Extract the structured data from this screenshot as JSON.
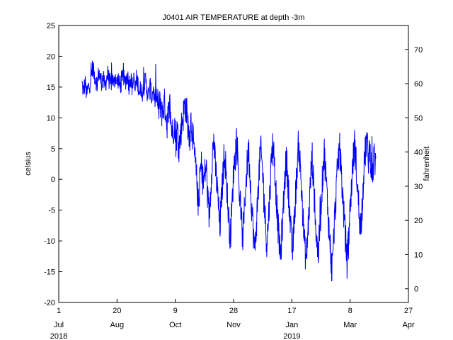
{
  "chart_data": {
    "type": "line",
    "title": "J0401 AIR TEMPERATURE at depth -3m",
    "ylabel": "celsius",
    "y2label": "fahrenheit",
    "ylim": [
      -20,
      25
    ],
    "y2lim": [
      -4,
      77
    ],
    "grid": false,
    "legend": "none",
    "line_color": "#0000ff",
    "x_ticks": [
      {
        "day": 0,
        "label": "1",
        "month": "Jul",
        "year": "2018"
      },
      {
        "day": 50,
        "label": "20",
        "month": "Aug",
        "year": ""
      },
      {
        "day": 100,
        "label": "9",
        "month": "Oct",
        "year": ""
      },
      {
        "day": 150,
        "label": "28",
        "month": "Nov",
        "year": ""
      },
      {
        "day": 200,
        "label": "17",
        "month": "Jan",
        "year": "2019"
      },
      {
        "day": 250,
        "label": "8",
        "month": "Mar",
        "year": ""
      },
      {
        "day": 300,
        "label": "27",
        "month": "Apr",
        "year": ""
      }
    ],
    "y_ticks": [
      -20,
      -15,
      -10,
      -5,
      0,
      5,
      10,
      15,
      20,
      25
    ],
    "y2_ticks": [
      0,
      10,
      20,
      30,
      40,
      50,
      60,
      70
    ],
    "series": [
      {
        "x_start": "2018-07-21",
        "x_end": "2019-03-30",
        "values_daily": [
          15.5,
          14.2,
          15.8,
          13.6,
          14.9,
          15.3,
          16.8,
          18.2,
          17.1,
          16.4,
          15.2,
          17.6,
          16.3,
          15.9,
          16.6,
          14.8,
          16.2,
          17.1,
          16.0,
          15.4,
          16.7,
          15.2,
          16.9,
          15.7,
          16.3,
          14.9,
          16.1,
          17.4,
          15.6,
          16.2,
          17.0,
          15.3,
          16.8,
          15.1,
          15.9,
          14.4,
          16.3,
          15.5,
          14.1,
          15.0,
          13.9,
          15.4,
          16.1,
          14.2,
          13.6,
          15.2,
          13.1,
          14.7,
          12.6,
          13.9,
          12.1,
          11.5,
          13.0,
          10.2,
          12.4,
          11.8,
          9.1,
          10.4,
          11.9,
          8.6,
          7.4,
          9.5,
          6.3,
          8.1,
          5.2,
          7.0,
          9.4,
          10.6,
          12.3,
          11.1,
          8.7,
          6.8,
          9.9,
          7.1,
          4.3,
          1.9,
          -1.2,
          -4.6,
          1.2,
          2.4,
          -0.8,
          0.7,
          2.3,
          -3.4,
          -6.1,
          -1.5,
          3.8,
          6.4,
          2.1,
          -0.6,
          -4.0,
          -8.2,
          -3.6,
          0.4,
          4.6,
          1.8,
          -2.9,
          -6.8,
          -9.4,
          -4.8,
          0.8,
          3.9,
          6.7,
          1.6,
          -2.1,
          -5.5,
          -9.8,
          -6.2,
          -1.4,
          2.2,
          5.1,
          0.3,
          -4.2,
          -7.9,
          -11.6,
          -8.1,
          -3.4,
          1.5,
          4.8,
          2.1,
          -1.9,
          -6.6,
          -10.3,
          -7.0,
          -2.2,
          2.9,
          6.1,
          3.0,
          -1.5,
          -5.8,
          -9.6,
          -12.8,
          -8.9,
          -4.3,
          0.6,
          3.4,
          -0.4,
          -4.9,
          -9.1,
          -11.9,
          -7.6,
          -2.8,
          1.7,
          5.9,
          2.5,
          -2.0,
          -6.4,
          -10.8,
          -13.1,
          -9.2,
          -4.7,
          0.1,
          3.6,
          -1.1,
          -5.9,
          -10.1,
          -12.3,
          -8.0,
          -3.6,
          1.0,
          4.4,
          0.8,
          -3.3,
          -7.6,
          -11.2,
          -15.0,
          -10.7,
          -5.6,
          -1.4,
          2.7,
          5.3,
          2.0,
          -2.1,
          -6.0,
          -9.5,
          -13.4,
          -9.8,
          -5.1,
          -0.9,
          3.0,
          5.8,
          2.6,
          -1.8,
          -5.2,
          -8.4,
          -4.0,
          0.9,
          4.2,
          6.6,
          3.2,
          5.0,
          2.4,
          1.0,
          3.8,
          2.2
        ]
      }
    ]
  }
}
